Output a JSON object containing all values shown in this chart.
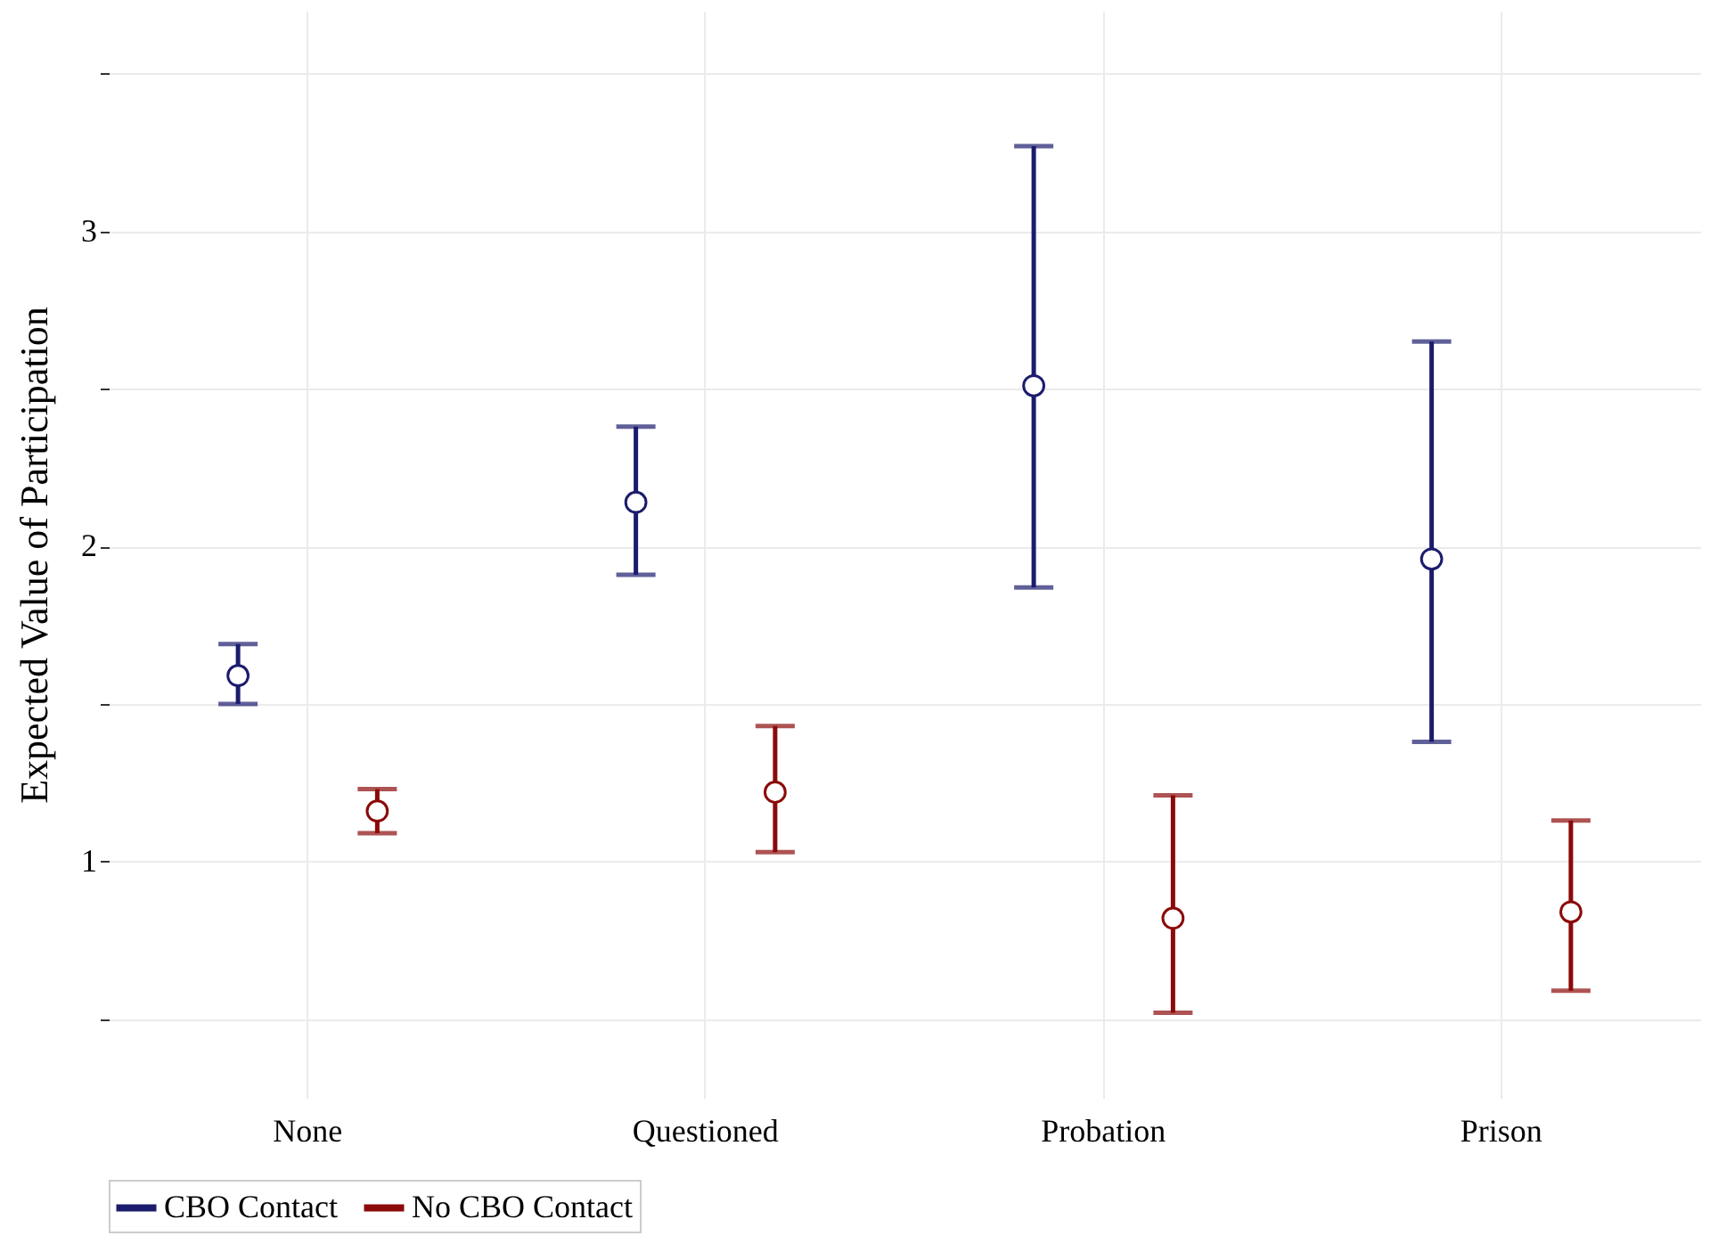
{
  "chart_data": {
    "type": "scatter",
    "ylabel": "Expected Value of Participation",
    "categories": [
      "None",
      "Questioned",
      "Probation",
      "Prison"
    ],
    "series": [
      {
        "name": "CBO Contact",
        "color": "#1c1c6e",
        "values": [
          1.59,
          2.14,
          2.51,
          1.96
        ],
        "errors": [
          [
            1.5,
            1.69
          ],
          [
            1.91,
            2.38
          ],
          [
            1.87,
            3.27
          ],
          [
            1.38,
            2.65
          ]
        ]
      },
      {
        "name": "No CBO Contact",
        "color": "#8b0a0a",
        "values": [
          1.16,
          1.22,
          0.82,
          0.84
        ],
        "errors": [
          [
            1.09,
            1.23
          ],
          [
            1.03,
            1.43
          ],
          [
            0.52,
            1.21
          ],
          [
            0.59,
            1.13
          ]
        ]
      }
    ],
    "ylim": [
      0.25,
      3.7
    ],
    "yticks": [
      {
        "value": 0.5,
        "label": null
      },
      1,
      {
        "value": 1.5,
        "label": null
      },
      2,
      {
        "value": 2.5,
        "label": null
      },
      3,
      {
        "value": 3.5,
        "label": null
      }
    ],
    "grid": true,
    "legend": "bottom",
    "marker": "circle"
  }
}
